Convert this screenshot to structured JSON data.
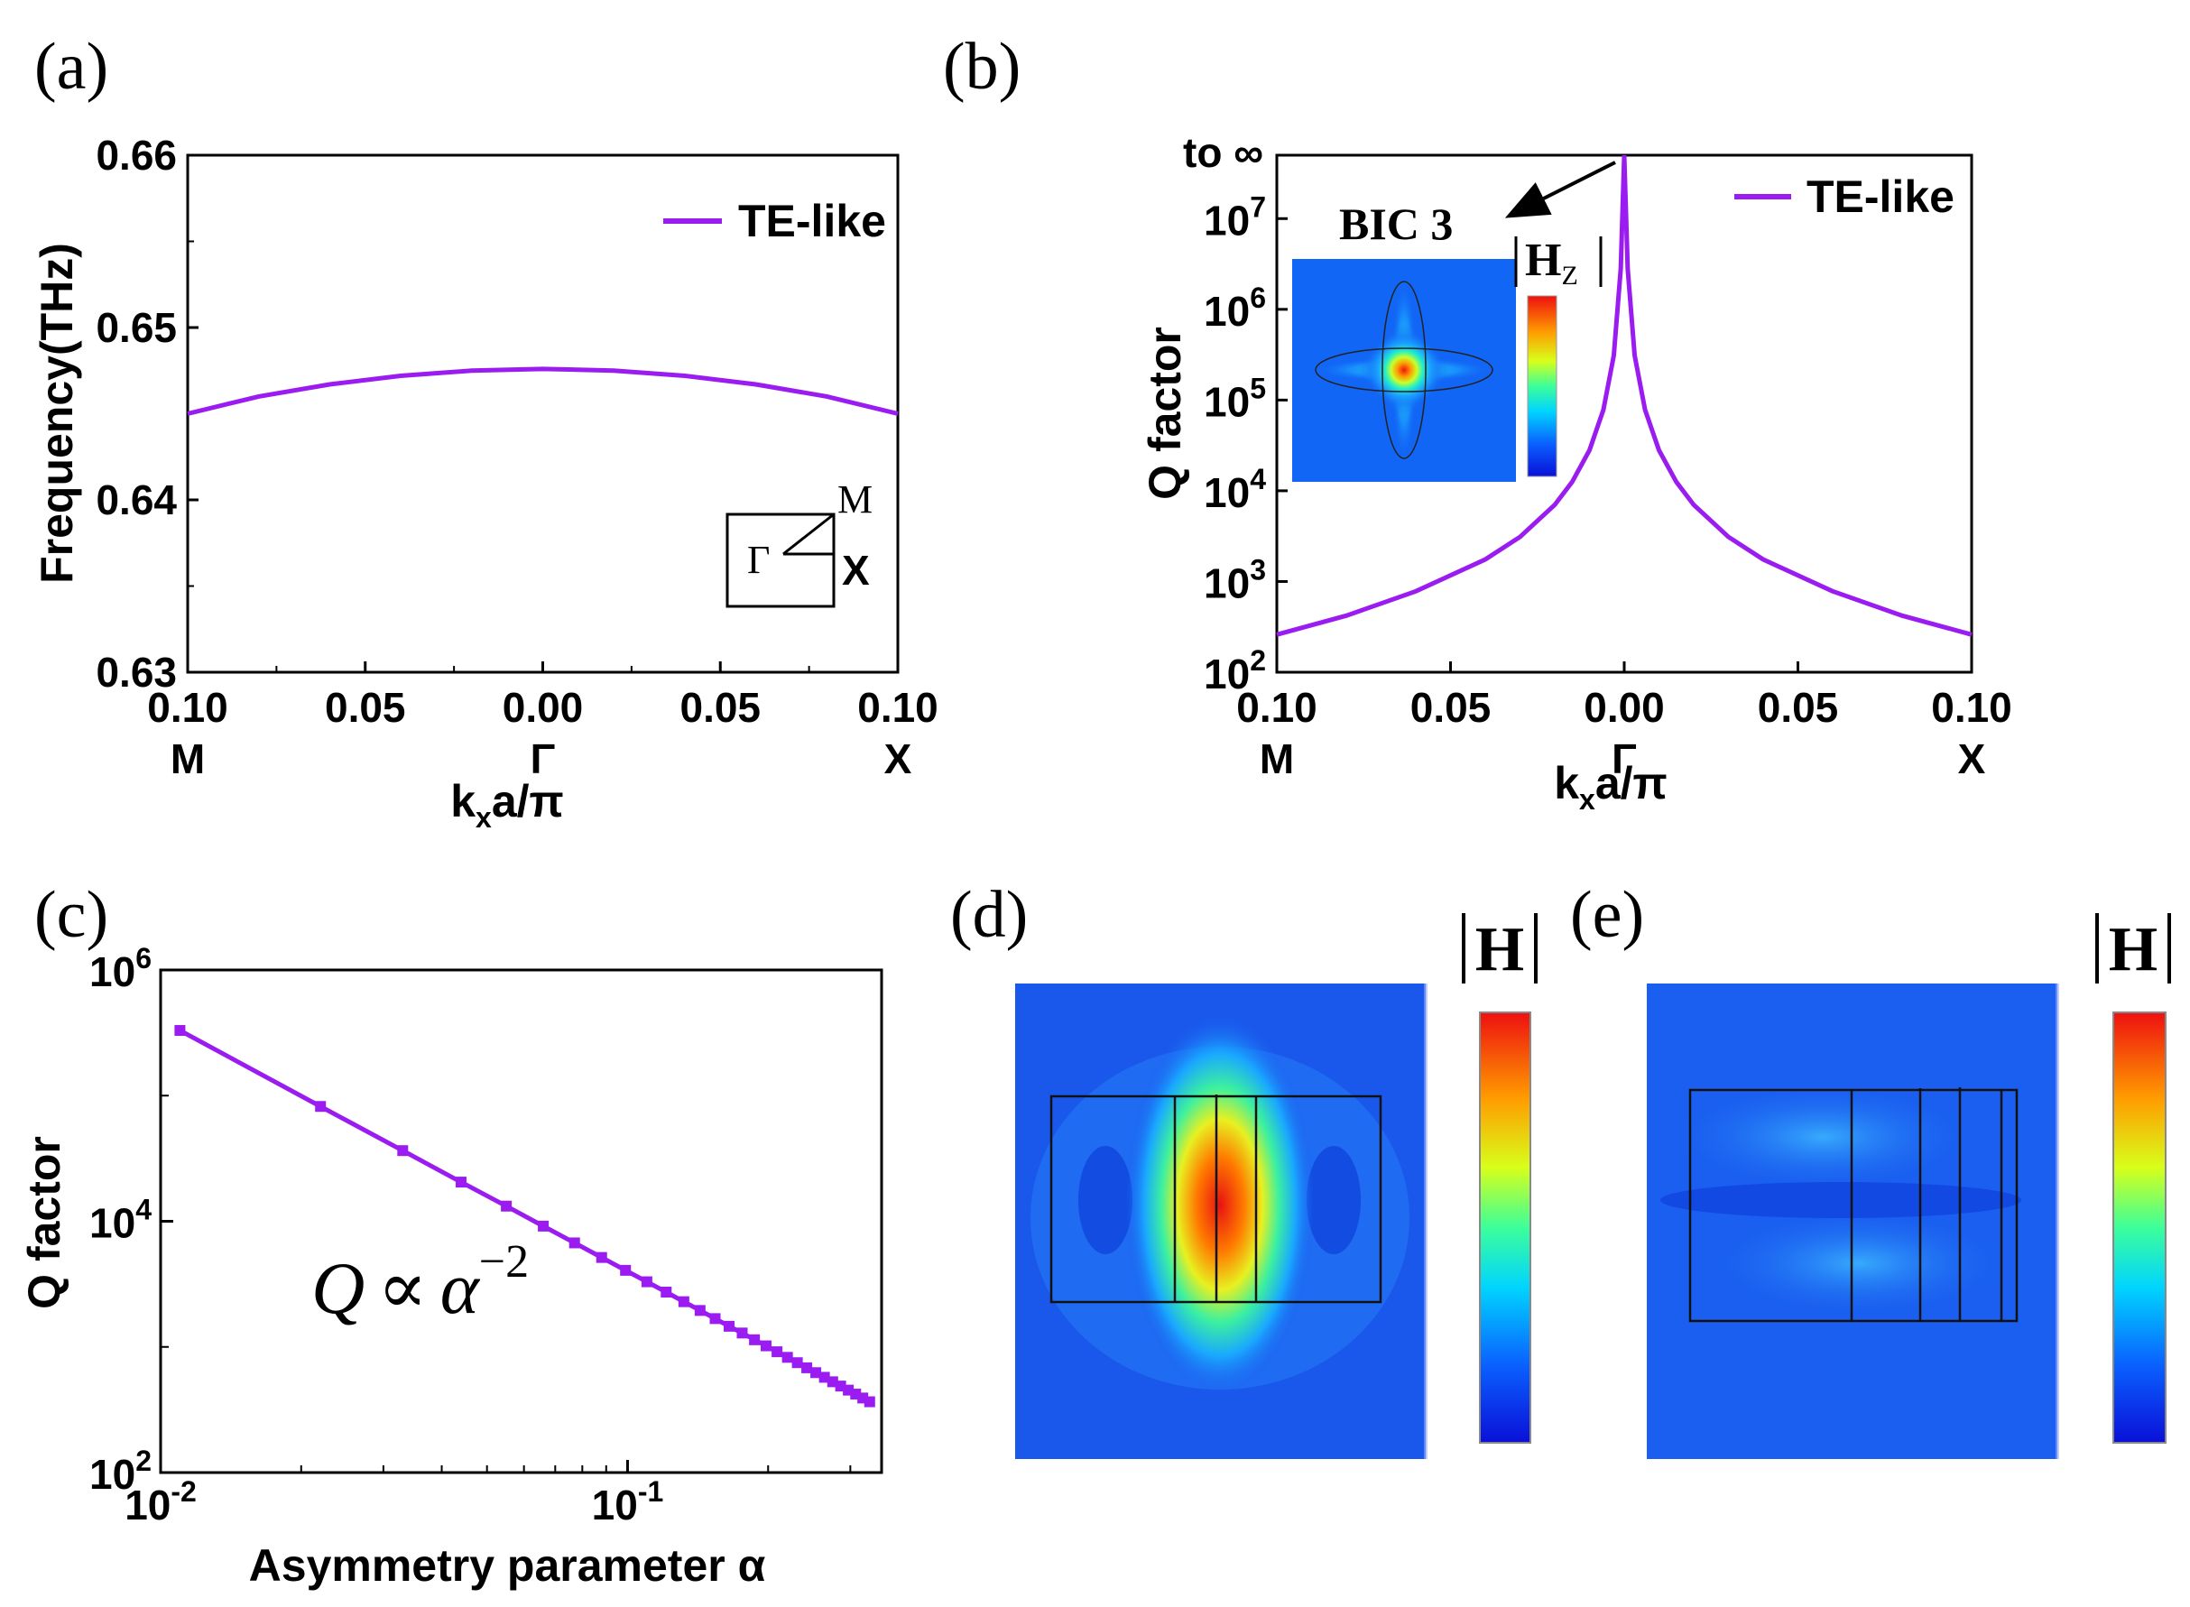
{
  "panel_labels": {
    "a": "(a)",
    "b": "(b)",
    "c": "(c)",
    "d": "(d)",
    "e": "(e)"
  },
  "colors": {
    "curve": "#9a1cf0",
    "frame": "#000000"
  },
  "chart_data": [
    {
      "id": "a",
      "type": "line",
      "ylabel": "Frequency(THz)",
      "xlabel_k": "k",
      "xlabel_sub": "x",
      "xlabel_rest": "a/π",
      "xticks": [
        "0.10",
        "0.05",
        "0.00",
        "0.05",
        "0.10"
      ],
      "xticks_num": [
        -0.1,
        -0.05,
        0.0,
        0.05,
        0.1
      ],
      "points_below": [
        "M",
        "Γ",
        "X"
      ],
      "yticks": [
        "0.66",
        "0.65",
        "0.64",
        "0.63"
      ],
      "xlim": [
        -0.1,
        0.1
      ],
      "ylim": [
        0.63,
        0.66
      ],
      "legend": "TE-like",
      "legend_position": "top-right",
      "series": [
        {
          "name": "TE-like",
          "x": [
            -0.1,
            -0.08,
            -0.06,
            -0.04,
            -0.02,
            0.0,
            0.02,
            0.04,
            0.06,
            0.08,
            0.1
          ],
          "y": [
            0.645,
            0.646,
            0.6467,
            0.6472,
            0.6475,
            0.6476,
            0.6475,
            0.6472,
            0.6467,
            0.646,
            0.645
          ]
        }
      ],
      "inset": {
        "gamma": "Γ",
        "m": "M",
        "x": "X"
      }
    },
    {
      "id": "b",
      "type": "line",
      "ylabel": "Q factor",
      "xlabel_k": "k",
      "xlabel_sub": "x",
      "xlabel_rest": "a/π",
      "xticks": [
        "0.10",
        "0.05",
        "0.00",
        "0.05",
        "0.10"
      ],
      "xticks_num": [
        -0.1,
        -0.05,
        0.0,
        0.05,
        0.1
      ],
      "points_below": [
        "M",
        "Γ",
        "X"
      ],
      "yticks_exp": [
        "2",
        "3",
        "4",
        "5",
        "6",
        "7"
      ],
      "ytick_base": "10",
      "top_label": "to ∞",
      "yscale": "log",
      "ylim": [
        100,
        50000000
      ],
      "xlim": [
        -0.1,
        0.1
      ],
      "legend": "TE-like",
      "legend_position": "top-right",
      "series": [
        {
          "name": "TE-like",
          "x": [
            -0.1,
            -0.08,
            -0.06,
            -0.04,
            -0.03,
            -0.02,
            -0.015,
            -0.01,
            -0.006,
            -0.003,
            -0.001,
            0.0,
            0.001,
            0.003,
            0.006,
            0.01,
            0.015,
            0.02,
            0.03,
            0.04,
            0.06,
            0.08,
            0.1
          ],
          "y": [
            260,
            420,
            780,
            1750,
            3100,
            7000,
            12500,
            28000,
            78000,
            310000,
            2800000,
            50000000,
            2800000,
            310000,
            78000,
            28000,
            12500,
            7000,
            3100,
            1750,
            780,
            420,
            260
          ]
        }
      ],
      "inset": {
        "title": "BIC 3",
        "field_label": "H",
        "field_sub": "Z"
      }
    },
    {
      "id": "c",
      "type": "scatter",
      "ylabel": "Q factor",
      "xlabel": "Asymmetry parameter α",
      "xscale": "log",
      "yscale": "log",
      "xlim": [
        0.01,
        0.35
      ],
      "ylim": [
        100,
        1000000
      ],
      "xticks_exp": [
        "-2",
        "-1"
      ],
      "yticks_exp": [
        "2",
        "4",
        "6"
      ],
      "tick_base": "10",
      "annotation": {
        "q": "Q",
        "prop": "∝",
        "alpha": "α",
        "exp": "−2"
      },
      "series": [
        {
          "name": "Q",
          "x": [
            0.011,
            0.022,
            0.033,
            0.044,
            0.055,
            0.066,
            0.077,
            0.088,
            0.099,
            0.11,
            0.121,
            0.132,
            0.143,
            0.154,
            0.165,
            0.176,
            0.187,
            0.198,
            0.209,
            0.22,
            0.231,
            0.242,
            0.253,
            0.264,
            0.275,
            0.286,
            0.297,
            0.308,
            0.319,
            0.33
          ],
          "y": [
            330000,
            82000,
            36500,
            20500,
            13200,
            9150,
            6730,
            5150,
            4070,
            3300,
            2730,
            2290,
            1950,
            1680,
            1460,
            1290,
            1140,
            1020,
            915,
            826,
            749,
            682,
            624,
            573,
            528,
            488,
            453,
            421,
            392,
            366
          ]
        }
      ]
    }
  ],
  "field_d": {
    "colorbar_label": "H"
  },
  "field_e": {
    "colorbar_label": "H"
  }
}
